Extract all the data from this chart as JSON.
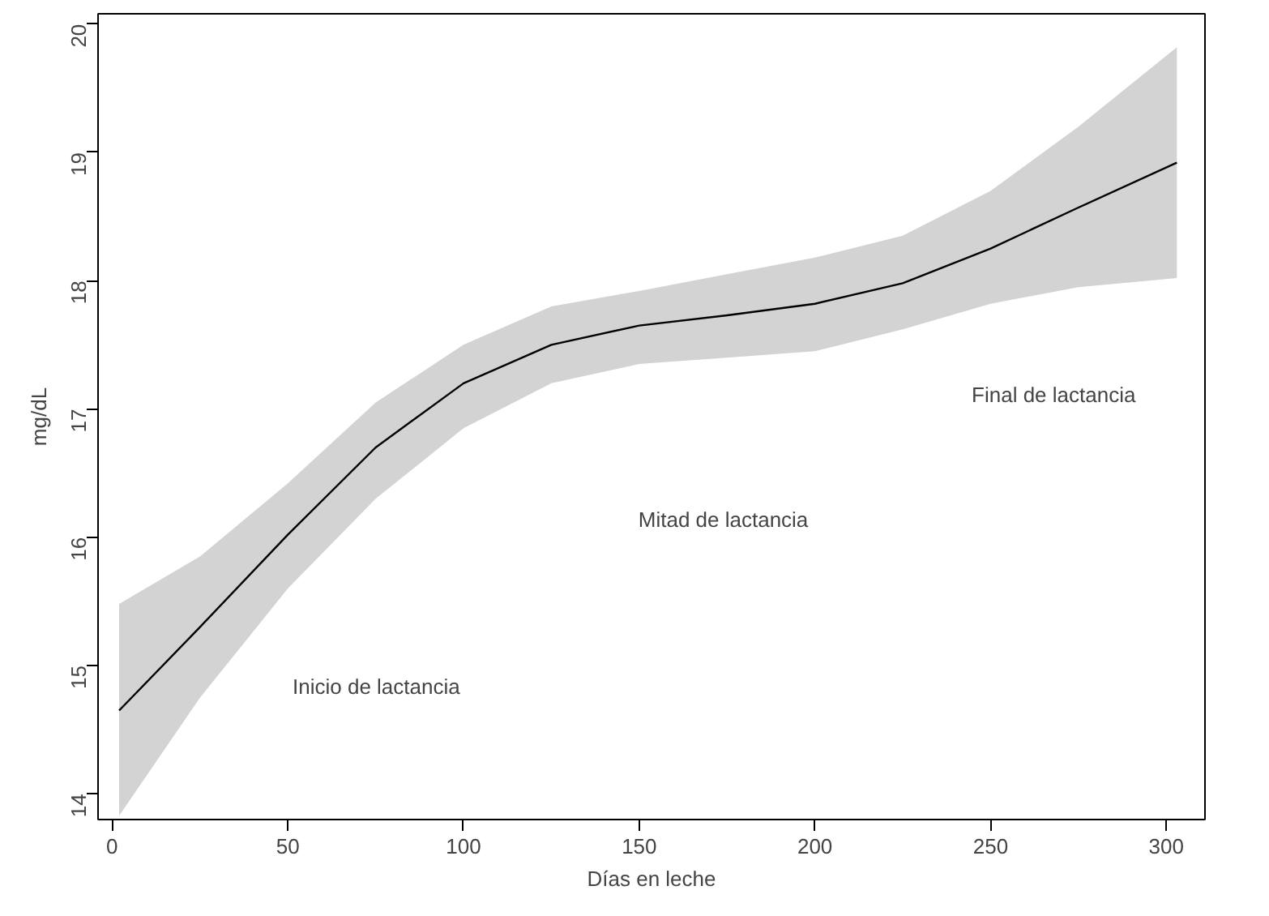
{
  "chart_data": {
    "type": "line",
    "xlabel": "Días en leche",
    "ylabel": "mg/dL",
    "xlim": [
      -4,
      311
    ],
    "ylim": [
      13.8,
      20.08
    ],
    "xticks": [
      0,
      50,
      100,
      150,
      200,
      250,
      300
    ],
    "yticks": [
      14,
      15,
      16,
      17,
      18,
      19,
      20
    ],
    "grid": false,
    "x": [
      2,
      25,
      50,
      75,
      100,
      125,
      150,
      175,
      200,
      225,
      250,
      275,
      303
    ],
    "series": [
      {
        "color": "#000000",
        "values": [
          14.65,
          15.3,
          16.02,
          16.7,
          17.2,
          17.5,
          17.65,
          17.73,
          17.82,
          17.98,
          18.25,
          18.57,
          18.92
        ],
        "lower": [
          13.83,
          14.75,
          15.6,
          16.3,
          16.85,
          17.2,
          17.35,
          17.4,
          17.45,
          17.62,
          17.82,
          17.95,
          18.02
        ],
        "upper": [
          15.48,
          15.85,
          16.42,
          17.05,
          17.5,
          17.8,
          17.92,
          18.05,
          18.18,
          18.35,
          18.7,
          19.2,
          19.82
        ]
      }
    ],
    "annotations": [
      "Inicio de lactancia",
      "Mitad de lactancia",
      "Final de lactancia"
    ]
  }
}
